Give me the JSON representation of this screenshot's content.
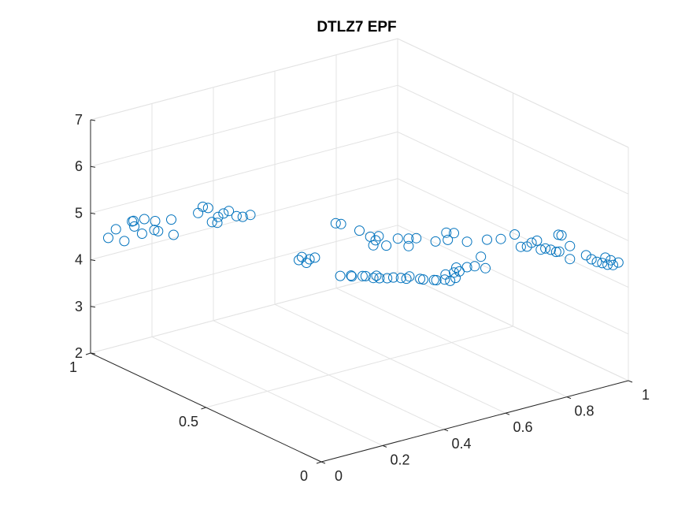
{
  "chart_data": {
    "type": "scatter",
    "projection": "3d",
    "title": "DTLZ7 EPF",
    "xlabel": "",
    "ylabel": "",
    "zlabel": "",
    "xlim": [
      0,
      1
    ],
    "ylim": [
      0,
      1
    ],
    "zlim": [
      2,
      7
    ],
    "xticks": [
      0,
      0.2,
      0.4,
      0.6,
      0.8,
      1
    ],
    "xtick_labels": [
      "0",
      "0.2",
      "0.4",
      "0.6",
      "0.8",
      "1"
    ],
    "yticks": [
      0,
      0.5,
      1
    ],
    "ytick_labels": [
      "0",
      "0.5",
      "1"
    ],
    "zticks": [
      2,
      3,
      4,
      5,
      6,
      7
    ],
    "ztick_labels": [
      "2",
      "3",
      "4",
      "5",
      "6",
      "7"
    ],
    "grid": true,
    "marker": "circle-open",
    "marker_color": "#0072bd",
    "series": [
      {
        "points": [
          [
            0.02,
            0.95,
            4.55
          ],
          [
            0.05,
            0.92,
            4.5
          ],
          [
            0.06,
            0.97,
            4.62
          ],
          [
            0.09,
            0.93,
            4.72
          ],
          [
            0.06,
            0.9,
            4.95
          ],
          [
            0.08,
            0.92,
            4.88
          ],
          [
            0.1,
            0.9,
            4.93
          ],
          [
            0.12,
            0.88,
            4.9
          ],
          [
            0.11,
            0.87,
            4.75
          ],
          [
            0.15,
            0.85,
            4.95
          ],
          [
            0.13,
            0.95,
            4.45
          ],
          [
            0.16,
            0.92,
            4.52
          ],
          [
            0.18,
            0.88,
            4.5
          ],
          [
            0.2,
            0.78,
            5.3
          ],
          [
            0.21,
            0.77,
            5.28
          ],
          [
            0.2,
            0.8,
            5.12
          ],
          [
            0.23,
            0.73,
            5.22
          ],
          [
            0.24,
            0.72,
            5.28
          ],
          [
            0.22,
            0.74,
            5.14
          ],
          [
            0.25,
            0.7,
            5.2
          ],
          [
            0.23,
            0.78,
            4.92
          ],
          [
            0.24,
            0.77,
            4.91
          ],
          [
            0.27,
            0.7,
            5.15
          ],
          [
            0.28,
            0.68,
            5.22
          ],
          [
            0.34,
            0.55,
            4.45
          ],
          [
            0.35,
            0.55,
            4.5
          ],
          [
            0.35,
            0.53,
            4.42
          ],
          [
            0.36,
            0.53,
            4.48
          ],
          [
            0.37,
            0.52,
            4.52
          ],
          [
            0.4,
            0.45,
            4.24
          ],
          [
            0.42,
            0.43,
            4.26
          ],
          [
            0.43,
            0.44,
            4.2
          ],
          [
            0.45,
            0.42,
            4.22
          ],
          [
            0.46,
            0.42,
            4.2
          ],
          [
            0.47,
            0.4,
            4.19
          ],
          [
            0.48,
            0.4,
            4.22
          ],
          [
            0.49,
            0.4,
            4.15
          ],
          [
            0.5,
            0.38,
            4.18
          ],
          [
            0.52,
            0.38,
            4.16
          ],
          [
            0.53,
            0.36,
            4.18
          ],
          [
            0.54,
            0.35,
            4.17
          ],
          [
            0.55,
            0.35,
            4.2
          ],
          [
            0.57,
            0.33,
            4.16
          ],
          [
            0.58,
            0.33,
            4.13
          ],
          [
            0.6,
            0.31,
            4.13
          ],
          [
            0.6,
            0.3,
            4.15
          ],
          [
            0.62,
            0.29,
            4.15
          ],
          [
            0.63,
            0.28,
            4.13
          ],
          [
            0.64,
            0.27,
            4.2
          ],
          [
            0.63,
            0.3,
            4.22
          ],
          [
            0.65,
            0.29,
            4.25
          ],
          [
            0.66,
            0.28,
            4.28
          ],
          [
            0.65,
            0.28,
            4.38
          ],
          [
            0.67,
            0.26,
            4.4
          ],
          [
            0.68,
            0.24,
            4.45
          ],
          [
            0.7,
            0.22,
            4.42
          ],
          [
            0.7,
            0.24,
            4.62
          ],
          [
            0.46,
            0.55,
            5.03
          ],
          [
            0.47,
            0.54,
            5.02
          ],
          [
            0.5,
            0.5,
            4.92
          ],
          [
            0.52,
            0.48,
            4.8
          ],
          [
            0.53,
            0.47,
            4.73
          ],
          [
            0.54,
            0.47,
            4.8
          ],
          [
            0.53,
            0.48,
            4.6
          ],
          [
            0.55,
            0.45,
            4.63
          ],
          [
            0.58,
            0.44,
            4.75
          ],
          [
            0.6,
            0.42,
            4.76
          ],
          [
            0.61,
            0.4,
            4.8
          ],
          [
            0.6,
            0.42,
            4.6
          ],
          [
            0.65,
            0.37,
            4.73
          ],
          [
            0.66,
            0.33,
            4.84
          ],
          [
            0.67,
            0.35,
            4.93
          ],
          [
            0.68,
            0.33,
            4.95
          ],
          [
            0.7,
            0.3,
            4.8
          ],
          [
            0.72,
            0.24,
            4.95
          ],
          [
            0.75,
            0.22,
            4.96
          ],
          [
            0.78,
            0.2,
            5.05
          ],
          [
            0.8,
            0.2,
            4.75
          ],
          [
            0.82,
            0.18,
            4.85
          ],
          [
            0.83,
            0.17,
            4.9
          ],
          [
            0.82,
            0.2,
            4.72
          ],
          [
            0.85,
            0.16,
            4.72
          ],
          [
            0.86,
            0.15,
            4.7
          ],
          [
            0.85,
            0.18,
            4.65
          ],
          [
            0.87,
            0.14,
            4.66
          ],
          [
            0.88,
            0.14,
            4.65
          ],
          [
            0.87,
            0.13,
            5.05
          ],
          [
            0.88,
            0.13,
            5.02
          ],
          [
            0.9,
            0.12,
            4.78
          ],
          [
            0.9,
            0.12,
            4.5
          ],
          [
            0.93,
            0.09,
            4.6
          ],
          [
            0.94,
            0.08,
            4.52
          ],
          [
            0.95,
            0.07,
            4.47
          ],
          [
            0.96,
            0.06,
            4.45
          ],
          [
            0.97,
            0.05,
            4.42
          ],
          [
            0.98,
            0.04,
            4.42
          ],
          [
            0.99,
            0.03,
            4.48
          ],
          [
            0.97,
            0.06,
            4.55
          ],
          [
            0.98,
            0.05,
            4.5
          ]
        ]
      }
    ]
  }
}
